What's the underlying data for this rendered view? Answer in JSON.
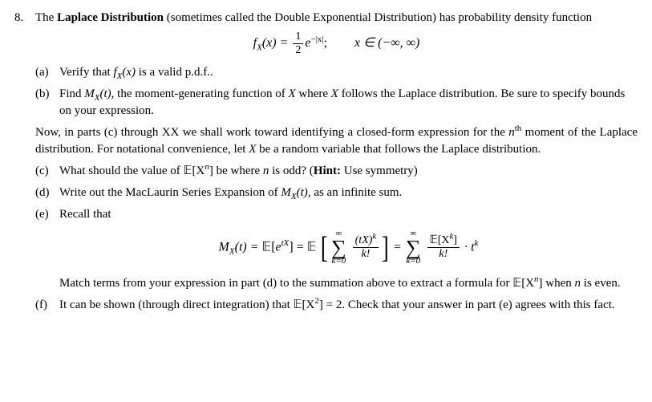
{
  "problem": {
    "number": "8.",
    "intro_a": "The ",
    "intro_bold": "Laplace Distribution",
    "intro_b": " (sometimes called the Double Exponential Distribution) has probability density function",
    "pdf_lhs": "f",
    "pdf_sub": "X",
    "pdf_arg": "(x) = ",
    "pdf_num": "1",
    "pdf_den": "2",
    "pdf_exp": "e",
    "pdf_sup": "−|x|",
    "pdf_semi": ";",
    "pdf_domain": "x ∈ (−∞, ∞)",
    "parts": {
      "a": {
        "label": "(a)",
        "text_a": "Verify that ",
        "fx": "f",
        "fxsub": "X",
        "fxarg": "(x)",
        "text_b": " is a valid p.d.f.."
      },
      "b": {
        "label": "(b)",
        "text_a": "Find ",
        "mx": "M",
        "mxsub": "X",
        "mxarg": "(t)",
        "text_b": ", the moment-generating function of ",
        "xvar": "X",
        "text_c": " where ",
        "xvar2": "X",
        "text_d": " follows the Laplace distribution. Be sure to specify bounds on your expression."
      },
      "c": {
        "label": "(c)",
        "text_a": "What should the value of ",
        "expr": "𝔼[X",
        "sup": "n",
        "expr2": "]",
        "text_b": " be where ",
        "nvar": "n",
        "text_c": " is odd? (",
        "hint_bold": "Hint:",
        "hint_rest": " Use symmetry)"
      },
      "d": {
        "label": "(d)",
        "text_a": "Write out the MacLaurin Series Expansion of ",
        "mx": "M",
        "mxsub": "X",
        "mxarg": "(t)",
        "text_b": ", as an infinite sum."
      },
      "e": {
        "label": "(e)",
        "text_a": "Recall that",
        "match": "Match terms from your expression in part (d) to the summation above to extract a formula for ",
        "expr": "𝔼[X",
        "sup": "n",
        "expr2": "]",
        "text_b": " when ",
        "nvar": "n",
        "text_c": " is even."
      },
      "f": {
        "label": "(f)",
        "text_a": "It can be shown (through direct integration) that ",
        "expr": "𝔼[X",
        "sup": "2",
        "expr2": "] = 2",
        "text_b": ". Check that your answer in part (e) agrees with this fact."
      }
    },
    "mid_para": {
      "a": "Now, in parts (c) through XX we shall work toward identifying a closed-form expression for the ",
      "nvar": "n",
      "sup": "th",
      "b": " moment of the Laplace distribution. For notational convenience, let ",
      "xvar": "X",
      "c": " be a random variable that follows the Laplace distribution."
    },
    "big_formula": {
      "lhs_m": "M",
      "lhs_sub": "X",
      "lhs_arg": "(t) = ",
      "e1": "𝔼[",
      "e1b": "e",
      "e1sup": "tX",
      "e1c": "] = ",
      "e2": "𝔼",
      "sum_top": "∞",
      "sum_bot": "k=0",
      "frac1_num_a": "(tX)",
      "frac1_num_sup": "k",
      "frac1_den": "k!",
      "eq": " = ",
      "frac2_num_a": "𝔼[X",
      "frac2_num_sup": "k",
      "frac2_num_b": "]",
      "frac2_den": "k!",
      "tail": " · t",
      "tail_sup": "k"
    }
  }
}
